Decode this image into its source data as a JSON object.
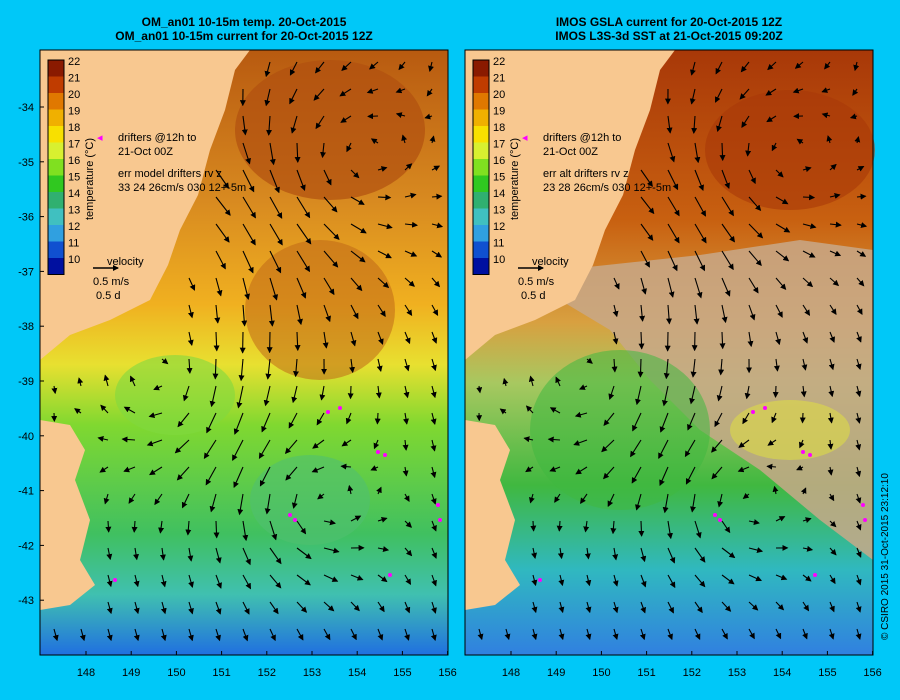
{
  "maps": [
    {
      "id": "left",
      "title_line1": "OM_an01 10-15m temp. 20-Oct-2015",
      "title_line2": "OM_an01 10-15m current for 20-Oct-2015 12Z",
      "drifters_line1": "drifters @12h to",
      "drifters_line2": "21-Oct 00Z",
      "err_line1": "err model drifters rv z",
      "err_line2": "33 24 26cm/s 030 12+-5m"
    },
    {
      "id": "right",
      "title_line1": "IMOS GSLA current for 20-Oct-2015 12Z",
      "title_line2": "IMOS L3S-3d SST at 21-Oct-2015 09:20Z",
      "drifters_line1": "drifters @12h to",
      "drifters_line2": "21-Oct 00Z",
      "err_line1": "err alt drifters rv z",
      "err_line2": "23 28 26cm/s 030 12+-5m"
    }
  ],
  "velocity_legend": {
    "label": "velocity",
    "speed": "0.5 m/s",
    "duration": "0.5 d"
  },
  "colorbar": {
    "label": "temperature (°C)",
    "ticks": [
      "22",
      "21",
      "20",
      "19",
      "18",
      "17",
      "16",
      "15",
      "14",
      "13",
      "12",
      "11",
      "10"
    ],
    "colors": [
      "#8a1a00",
      "#c03c00",
      "#e07800",
      "#f0b000",
      "#f8e000",
      "#d8f030",
      "#80e020",
      "#30c820",
      "#30b070",
      "#40c0c0",
      "#30a0e0",
      "#1050d0",
      "#0010a0"
    ]
  },
  "axes": {
    "lon_ticks": [
      "148",
      "149",
      "150",
      "151",
      "152",
      "153",
      "154",
      "155",
      "156"
    ],
    "lat_ticks": [
      "-34",
      "-35",
      "-36",
      "-37",
      "-38",
      "-39",
      "-40",
      "-41",
      "-42",
      "-43"
    ]
  },
  "copyright": "© CSIRO 2015   31-Oct-2015 23:12:10",
  "colors": {
    "background": "#00c8f8",
    "land": "#f8c890",
    "no_data": "#c8a888",
    "drifter": "#ff00ff"
  }
}
